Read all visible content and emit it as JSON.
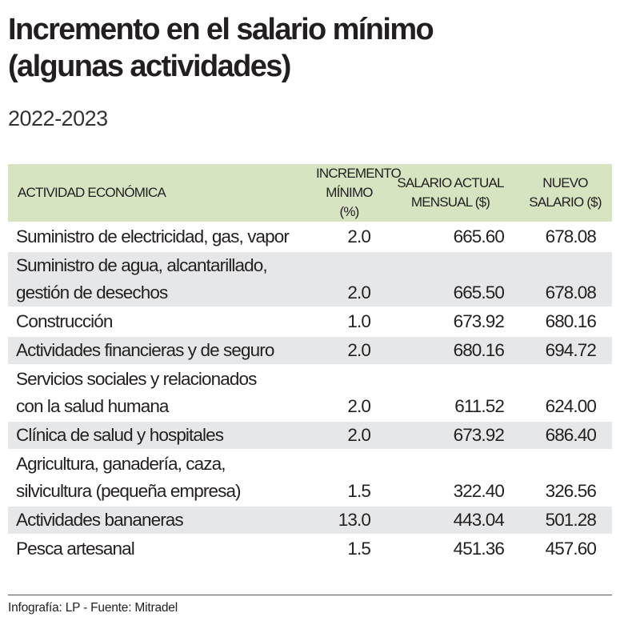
{
  "title_line1": "Incremento en el salario mínimo",
  "title_line2": "(algunas actividades)",
  "subtitle": "2022-2023",
  "colors": {
    "header_bg": "#d6e4c1",
    "stripe_bg": "#e6e7e8"
  },
  "chart_data": {
    "type": "table",
    "columns": [
      {
        "line1": "ACTIVIDAD ECONÓMICA",
        "line2": ""
      },
      {
        "line1": "INCREMENTO",
        "line2": "MÍNIMO (%)"
      },
      {
        "line1": "SALARIO ACTUAL",
        "line2": "MENSUAL ($)"
      },
      {
        "line1": "NUEVO",
        "line2": "SALARIO ($)"
      }
    ],
    "rows": [
      {
        "activity": [
          "Suministro de electricidad, gas, vapor"
        ],
        "increment": "2.0",
        "current": "665.60",
        "new": "678.08"
      },
      {
        "activity": [
          "Suministro de agua, alcantarillado,",
          "gestión de desechos"
        ],
        "increment": "2.0",
        "current": "665.50",
        "new": "678.08"
      },
      {
        "activity": [
          "Construcción"
        ],
        "increment": "1.0",
        "current": "673.92",
        "new": "680.16"
      },
      {
        "activity": [
          "Actividades financieras y de seguro"
        ],
        "increment": "2.0",
        "current": "680.16",
        "new": "694.72"
      },
      {
        "activity": [
          "Servicios sociales y relacionados",
          "con la salud humana"
        ],
        "increment": "2.0",
        "current": "611.52",
        "new": "624.00"
      },
      {
        "activity": [
          "Clínica de salud y hospitales"
        ],
        "increment": "2.0",
        "current": "673.92",
        "new": "686.40"
      },
      {
        "activity": [
          "Agricultura, ganadería, caza,",
          "silvicultura (pequeña empresa)"
        ],
        "increment": "1.5",
        "current": "322.40",
        "new": "326.56"
      },
      {
        "activity": [
          "Actividades bananeras"
        ],
        "increment": "13.0",
        "current": "443.04",
        "new": "501.28"
      },
      {
        "activity": [
          "Pesca artesanal"
        ],
        "increment": "1.5",
        "current": "451.36",
        "new": "457.60"
      }
    ]
  },
  "footer": "Infografía: LP - Fuente: Mitradel"
}
